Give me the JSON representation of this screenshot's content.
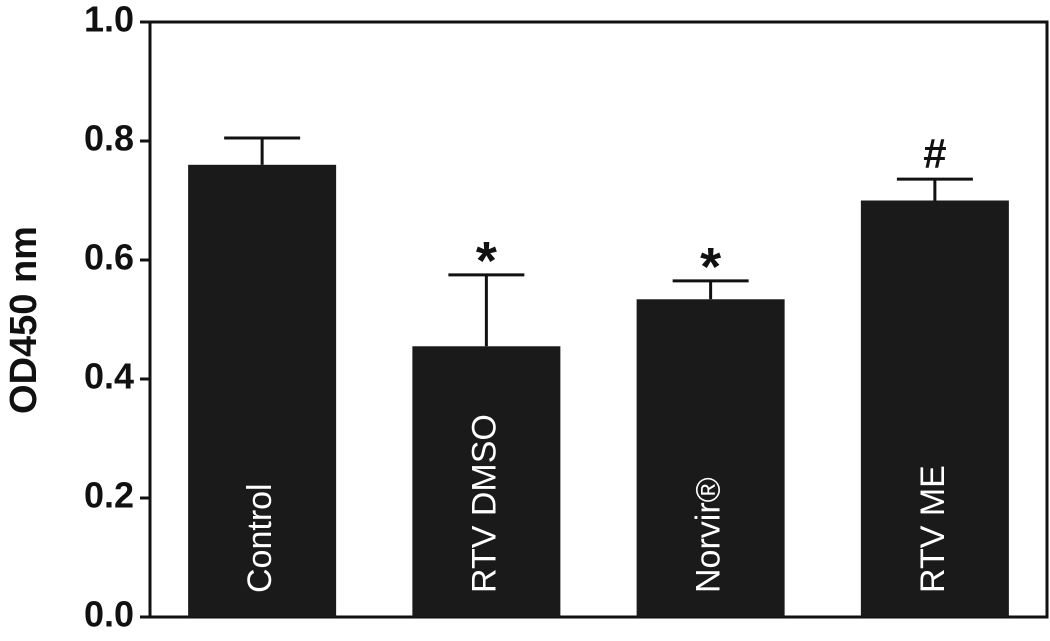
{
  "chart_data": {
    "type": "bar",
    "y_label": "OD450 nm",
    "categories": [
      "Control",
      "RTV DMSO",
      "Norvir®",
      "RTV ME"
    ],
    "values": [
      0.76,
      0.455,
      0.534,
      0.7
    ],
    "errors": [
      0.045,
      0.12,
      0.031,
      0.036
    ],
    "annotations": [
      null,
      "*",
      "*",
      "#"
    ],
    "color": "#1a1a1a",
    "ylim": [
      0,
      1
    ],
    "yticks": [
      {
        "value": 0,
        "label": "0.0"
      },
      0.2,
      0.4,
      0.6,
      0.8,
      {
        "value": 1,
        "label": "1.0"
      }
    ],
    "grid": false
  }
}
